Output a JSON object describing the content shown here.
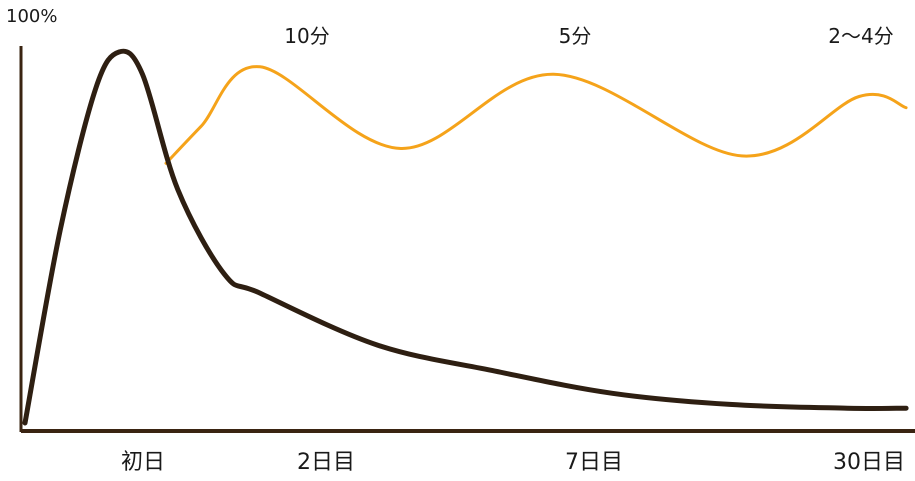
{
  "chart_data": {
    "type": "line",
    "y_tick_labels": [
      "100%"
    ],
    "categories": [
      "初日",
      "2日目",
      "7日目",
      "30日目"
    ],
    "annotations": [
      "10分",
      "5分",
      "2〜4分"
    ],
    "series": [
      {
        "color": "#2e1f12",
        "shape": "forgetting-curve",
        "points": [
          {
            "x": 0.0,
            "y": 0
          },
          {
            "x": 0.3,
            "y": 52
          },
          {
            "x": 0.6,
            "y": 90
          },
          {
            "x": 0.8,
            "y": 100
          },
          {
            "x": 1.0,
            "y": 94
          },
          {
            "x": 1.3,
            "y": 63
          },
          {
            "x": 1.7,
            "y": 40
          },
          {
            "x": 2.0,
            "y": 35
          },
          {
            "x": 3.0,
            "y": 21
          },
          {
            "x": 4.0,
            "y": 14
          },
          {
            "x": 5.0,
            "y": 8
          },
          {
            "x": 6.0,
            "y": 5
          },
          {
            "x": 7.0,
            "y": 4
          },
          {
            "x": 7.5,
            "y": 4
          }
        ]
      },
      {
        "color": "#f5a31a",
        "shape": "review-curve",
        "points": [
          {
            "x": 1.2,
            "y": 70
          },
          {
            "x": 1.5,
            "y": 80
          },
          {
            "x": 2.0,
            "y": 96
          },
          {
            "x": 3.2,
            "y": 74
          },
          {
            "x": 4.5,
            "y": 94
          },
          {
            "x": 6.1,
            "y": 72
          },
          {
            "x": 7.1,
            "y": 88
          },
          {
            "x": 7.5,
            "y": 85
          }
        ]
      }
    ],
    "ylim": [
      0,
      100
    ],
    "xlim": [
      0,
      7.55
    ],
    "grid": false,
    "legend": "none"
  }
}
